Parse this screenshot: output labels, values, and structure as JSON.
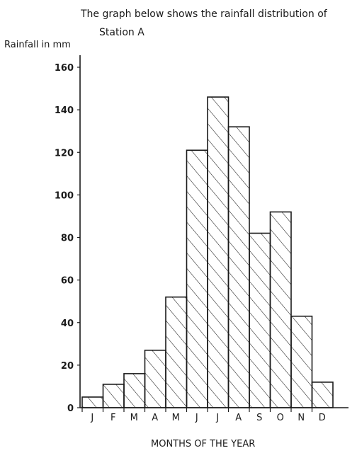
{
  "chart_data": {
    "type": "bar",
    "title_lines": [
      "The graph below shows the rainfall distribution of",
      "Station A"
    ],
    "ylabel": "Rainfall in mm",
    "xlabel": "MONTHS OF THE YEAR",
    "categories": [
      "J",
      "F",
      "M",
      "A",
      "M",
      "J",
      "J",
      "A",
      "S",
      "O",
      "N",
      "D"
    ],
    "values": [
      5,
      11,
      16,
      27,
      52,
      121,
      146,
      132,
      82,
      92,
      43,
      12
    ],
    "yticks": [
      0,
      20,
      40,
      60,
      80,
      100,
      120,
      140,
      160
    ],
    "ylim": [
      0,
      160
    ],
    "fill_pattern": "diagonal-hatch",
    "grid": false,
    "colors": {
      "ink": "#1a1a1a",
      "background": "#ffffff"
    }
  }
}
